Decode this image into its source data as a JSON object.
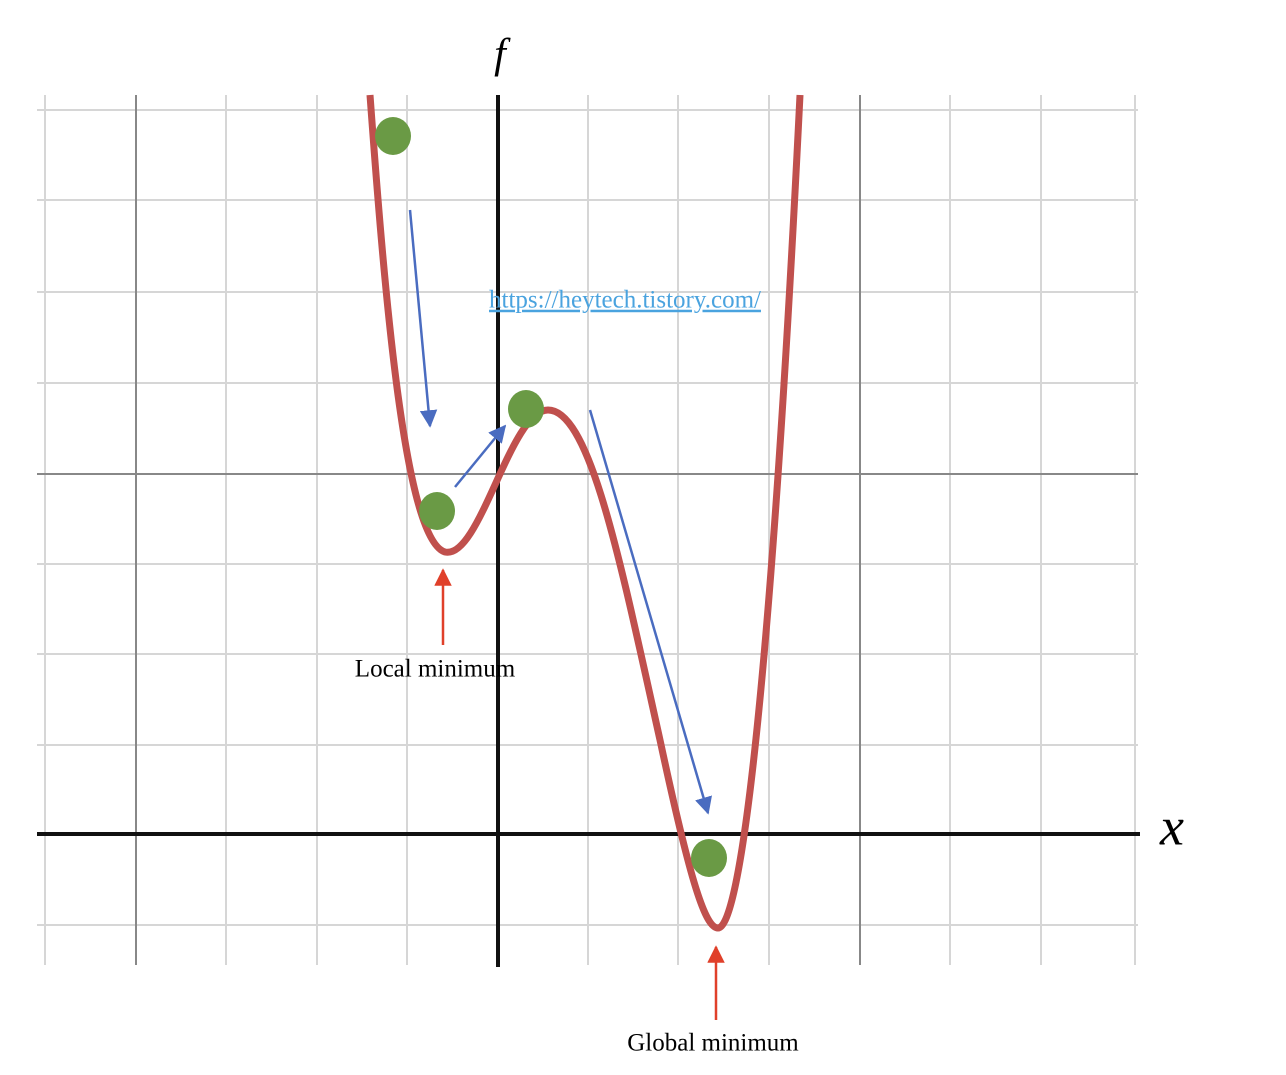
{
  "axes": {
    "y_label": "f",
    "x_label": "x"
  },
  "link": "https://heytech.tistory.com/",
  "annotations": {
    "local": "Local minimum",
    "global": "Global minimum"
  }
}
